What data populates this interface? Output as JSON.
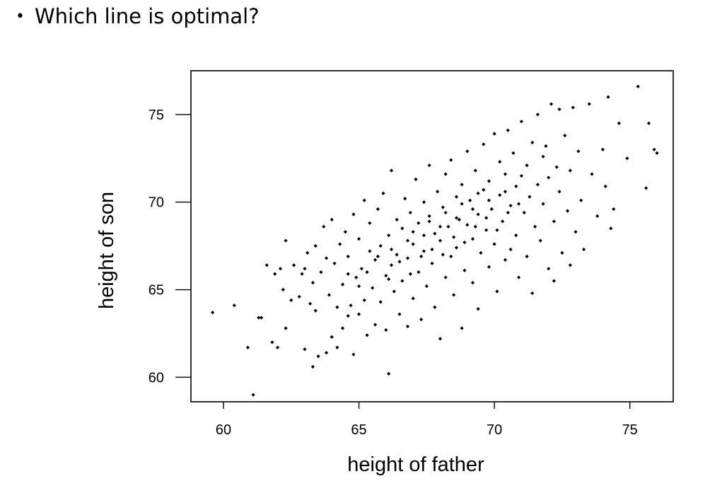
{
  "slide": {
    "bullet": "•",
    "question": "Which line is optimal?"
  },
  "chart_data": {
    "type": "scatter",
    "title": "",
    "xlabel": "height of father",
    "ylabel": "height of son",
    "xlim": [
      58.8,
      76.6
    ],
    "ylim": [
      58.6,
      77.5
    ],
    "xticks": [
      60,
      65,
      70,
      75
    ],
    "yticks": [
      60,
      65,
      70,
      75
    ],
    "grid": false,
    "legend": "none",
    "point_color": "#000000",
    "series": [
      {
        "points": [
          [
            59.6,
            63.7
          ],
          [
            60.4,
            64.1
          ],
          [
            60.9,
            61.7
          ],
          [
            61.1,
            59.0
          ],
          [
            61.3,
            63.4
          ],
          [
            61.4,
            63.4
          ],
          [
            61.6,
            66.4
          ],
          [
            61.8,
            62.0
          ],
          [
            61.9,
            65.9
          ],
          [
            62.0,
            61.7
          ],
          [
            62.1,
            66.2
          ],
          [
            62.2,
            65.0
          ],
          [
            62.3,
            62.8
          ],
          [
            62.3,
            67.8
          ],
          [
            62.5,
            64.4
          ],
          [
            62.6,
            66.4
          ],
          [
            62.8,
            64.6
          ],
          [
            62.9,
            65.9
          ],
          [
            63.0,
            61.6
          ],
          [
            63.0,
            66.2
          ],
          [
            63.1,
            67.1
          ],
          [
            63.2,
            64.2
          ],
          [
            63.3,
            60.6
          ],
          [
            63.3,
            65.4
          ],
          [
            63.4,
            67.5
          ],
          [
            63.4,
            63.8
          ],
          [
            63.5,
            61.2
          ],
          [
            63.6,
            66.0
          ],
          [
            63.7,
            68.6
          ],
          [
            63.8,
            61.4
          ],
          [
            63.8,
            66.8
          ],
          [
            63.9,
            64.7
          ],
          [
            64.0,
            62.3
          ],
          [
            64.0,
            69.0
          ],
          [
            64.1,
            66.5
          ],
          [
            64.2,
            61.7
          ],
          [
            64.2,
            64.0
          ],
          [
            64.3,
            67.6
          ],
          [
            64.4,
            62.8
          ],
          [
            64.4,
            65.3
          ],
          [
            64.5,
            68.3
          ],
          [
            64.6,
            63.5
          ],
          [
            64.6,
            66.9
          ],
          [
            64.7,
            64.1
          ],
          [
            64.8,
            69.3
          ],
          [
            64.8,
            61.3
          ],
          [
            64.9,
            65.7
          ],
          [
            65.0,
            67.9
          ],
          [
            65.0,
            63.6
          ],
          [
            65.1,
            66.2
          ],
          [
            65.2,
            70.1
          ],
          [
            65.2,
            64.4
          ],
          [
            65.3,
            62.4
          ],
          [
            65.4,
            67.2
          ],
          [
            65.4,
            68.8
          ],
          [
            65.5,
            65.1
          ],
          [
            65.6,
            63.0
          ],
          [
            65.6,
            66.7
          ],
          [
            65.7,
            69.6
          ],
          [
            65.8,
            64.3
          ],
          [
            65.8,
            67.5
          ],
          [
            65.9,
            70.5
          ],
          [
            66.0,
            65.8
          ],
          [
            66.0,
            62.7
          ],
          [
            66.1,
            68.1
          ],
          [
            66.1,
            60.2
          ],
          [
            66.2,
            66.4
          ],
          [
            66.2,
            71.8
          ],
          [
            66.3,
            64.9
          ],
          [
            66.4,
            69.0
          ],
          [
            66.4,
            67.0
          ],
          [
            66.5,
            63.6
          ],
          [
            66.6,
            68.5
          ],
          [
            66.6,
            65.5
          ],
          [
            66.7,
            70.2
          ],
          [
            66.8,
            66.8
          ],
          [
            66.8,
            62.9
          ],
          [
            66.9,
            69.4
          ],
          [
            67.0,
            67.6
          ],
          [
            67.0,
            64.5
          ],
          [
            67.1,
            71.3
          ],
          [
            67.2,
            66.0
          ],
          [
            67.2,
            68.8
          ],
          [
            67.3,
            63.3
          ],
          [
            67.4,
            70.0
          ],
          [
            67.4,
            67.2
          ],
          [
            67.5,
            65.2
          ],
          [
            67.6,
            69.2
          ],
          [
            67.6,
            72.1
          ],
          [
            67.7,
            66.5
          ],
          [
            67.8,
            68.2
          ],
          [
            67.8,
            64.0
          ],
          [
            67.9,
            70.6
          ],
          [
            68.0,
            67.8
          ],
          [
            68.0,
            62.2
          ],
          [
            68.1,
            69.7
          ],
          [
            68.2,
            65.7
          ],
          [
            68.2,
            71.6
          ],
          [
            68.3,
            68.6
          ],
          [
            68.4,
            66.9
          ],
          [
            68.4,
            72.4
          ],
          [
            68.5,
            64.7
          ],
          [
            68.6,
            70.3
          ],
          [
            68.6,
            67.4
          ],
          [
            68.7,
            69.0
          ],
          [
            68.8,
            62.8
          ],
          [
            68.8,
            71.0
          ],
          [
            68.9,
            66.1
          ],
          [
            69.0,
            68.7
          ],
          [
            69.0,
            72.9
          ],
          [
            69.1,
            70.1
          ],
          [
            69.2,
            65.4
          ],
          [
            69.2,
            67.9
          ],
          [
            69.3,
            71.8
          ],
          [
            69.4,
            69.3
          ],
          [
            69.4,
            63.9
          ],
          [
            69.5,
            67.1
          ],
          [
            69.6,
            70.7
          ],
          [
            69.6,
            73.3
          ],
          [
            69.7,
            68.4
          ],
          [
            69.8,
            66.3
          ],
          [
            69.8,
            71.2
          ],
          [
            69.9,
            69.6
          ],
          [
            70.0,
            73.9
          ],
          [
            70.0,
            67.6
          ],
          [
            70.1,
            64.9
          ],
          [
            70.2,
            70.4
          ],
          [
            70.2,
            72.3
          ],
          [
            70.3,
            68.9
          ],
          [
            70.4,
            66.7
          ],
          [
            70.4,
            71.6
          ],
          [
            70.5,
            74.1
          ],
          [
            70.6,
            69.8
          ],
          [
            70.6,
            67.3
          ],
          [
            70.7,
            72.8
          ],
          [
            70.8,
            70.9
          ],
          [
            70.8,
            68.1
          ],
          [
            70.9,
            65.7
          ],
          [
            71.0,
            71.5
          ],
          [
            71.0,
            74.6
          ],
          [
            71.1,
            69.4
          ],
          [
            71.2,
            72.1
          ],
          [
            71.2,
            66.9
          ],
          [
            71.3,
            70.3
          ],
          [
            71.4,
            73.4
          ],
          [
            71.4,
            64.8
          ],
          [
            71.5,
            68.6
          ],
          [
            71.6,
            75.0
          ],
          [
            71.6,
            71.0
          ],
          [
            71.7,
            67.8
          ],
          [
            71.8,
            72.6
          ],
          [
            71.8,
            69.9
          ],
          [
            71.9,
            73.2
          ],
          [
            72.0,
            66.2
          ],
          [
            72.0,
            71.4
          ],
          [
            72.1,
            75.6
          ],
          [
            72.2,
            68.9
          ],
          [
            72.2,
            65.5
          ],
          [
            72.3,
            72.0
          ],
          [
            72.4,
            75.3
          ],
          [
            72.4,
            70.6
          ],
          [
            72.5,
            67.1
          ],
          [
            72.6,
            73.8
          ],
          [
            72.7,
            69.5
          ],
          [
            72.8,
            66.4
          ],
          [
            72.8,
            71.8
          ],
          [
            72.9,
            75.4
          ],
          [
            73.0,
            68.3
          ],
          [
            73.1,
            72.9
          ],
          [
            73.2,
            70.1
          ],
          [
            73.3,
            67.3
          ],
          [
            73.5,
            75.6
          ],
          [
            73.6,
            71.6
          ],
          [
            73.8,
            69.2
          ],
          [
            74.0,
            73.0
          ],
          [
            74.1,
            70.9
          ],
          [
            74.2,
            76.0
          ],
          [
            74.3,
            68.5
          ],
          [
            74.4,
            69.6
          ],
          [
            74.6,
            74.5
          ],
          [
            74.9,
            72.5
          ],
          [
            75.3,
            76.6
          ],
          [
            75.6,
            70.8
          ],
          [
            75.7,
            74.5
          ],
          [
            75.9,
            73.0
          ],
          [
            76.0,
            72.8
          ],
          [
            65.3,
            66.0
          ],
          [
            65.7,
            66.9
          ],
          [
            66.1,
            65.6
          ],
          [
            66.5,
            66.6
          ],
          [
            66.9,
            65.9
          ],
          [
            67.3,
            66.9
          ],
          [
            67.7,
            67.3
          ],
          [
            68.1,
            67.0
          ],
          [
            68.5,
            68.0
          ],
          [
            68.9,
            67.7
          ],
          [
            69.3,
            68.6
          ],
          [
            69.7,
            69.1
          ],
          [
            70.1,
            68.4
          ],
          [
            70.5,
            69.4
          ],
          [
            70.9,
            69.9
          ],
          [
            67.0,
            68.3
          ],
          [
            67.6,
            68.9
          ],
          [
            68.2,
            69.4
          ],
          [
            68.8,
            69.9
          ],
          [
            69.4,
            70.5
          ],
          [
            66.2,
            67.3
          ],
          [
            66.8,
            67.8
          ],
          [
            67.4,
            68.1
          ],
          [
            68.0,
            68.6
          ],
          [
            68.6,
            69.1
          ],
          [
            69.2,
            69.6
          ],
          [
            69.8,
            70.1
          ],
          [
            70.4,
            70.6
          ],
          [
            64.6,
            65.9
          ],
          [
            65.0,
            65.2
          ]
        ]
      }
    ]
  }
}
